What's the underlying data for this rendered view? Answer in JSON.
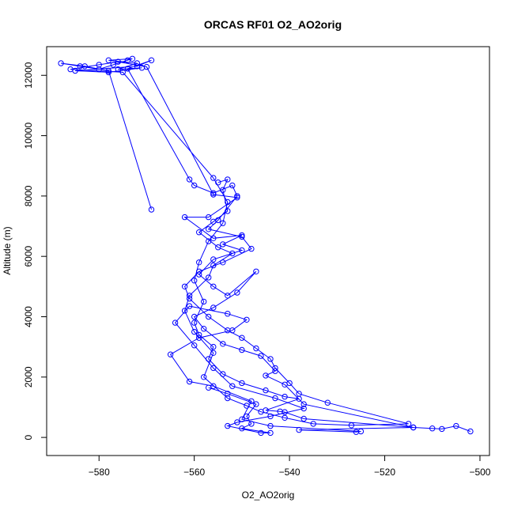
{
  "chart_data": {
    "type": "line",
    "title": "ORCAS RF01 O2_AO2orig",
    "xlabel": "O2_AO2orig",
    "ylabel": "Altitude (m)",
    "xlim": [
      -591,
      -498
    ],
    "ylim": [
      -600,
      12950
    ],
    "xticks": [
      -580,
      -560,
      -540,
      -520,
      -500
    ],
    "yticks": [
      0,
      2000,
      4000,
      6000,
      8000,
      10000,
      12000
    ],
    "markers": "open-circle",
    "color": "#0000ff",
    "grid": false,
    "series": [
      {
        "name": "",
        "points": [
          [
            -502,
            200
          ],
          [
            -505,
            380
          ],
          [
            -508,
            280
          ],
          [
            -510,
            300
          ],
          [
            -514,
            330
          ],
          [
            -537,
            620
          ],
          [
            -541,
            840
          ],
          [
            -542,
            860
          ],
          [
            -545,
            900
          ],
          [
            -538,
            1280
          ],
          [
            -541,
            1350
          ],
          [
            -545,
            1560
          ],
          [
            -550,
            1800
          ],
          [
            -554,
            2100
          ],
          [
            -557,
            2600
          ],
          [
            -556,
            3000
          ],
          [
            -559,
            3400
          ],
          [
            -560,
            3800
          ],
          [
            -558,
            4500
          ],
          [
            -560,
            5200
          ],
          [
            -559,
            5800
          ],
          [
            -557,
            6500
          ],
          [
            -554,
            7100
          ],
          [
            -553,
            7800
          ],
          [
            -556,
            8600
          ],
          [
            -575,
            12100
          ],
          [
            -586,
            12200
          ],
          [
            -580,
            12350
          ],
          [
            -576,
            12450
          ],
          [
            -570,
            12280
          ],
          [
            -556,
            8050
          ],
          [
            -551,
            7950
          ],
          [
            -557,
            7300
          ],
          [
            -562,
            7300
          ],
          [
            -556,
            6600
          ],
          [
            -550,
            6700
          ],
          [
            -554,
            6400
          ],
          [
            -550,
            6200
          ],
          [
            -556,
            5900
          ],
          [
            -559,
            5400
          ],
          [
            -556,
            5000
          ],
          [
            -553,
            4700
          ],
          [
            -547,
            5500
          ],
          [
            -551,
            4800
          ],
          [
            -556,
            4300
          ],
          [
            -560,
            4000
          ],
          [
            -558,
            3600
          ],
          [
            -554,
            3100
          ],
          [
            -550,
            2900
          ],
          [
            -546,
            2700
          ],
          [
            -543,
            2200
          ],
          [
            -545,
            2050
          ],
          [
            -541,
            1750
          ],
          [
            -537,
            1100
          ],
          [
            -514,
            330
          ],
          [
            -538,
            250
          ],
          [
            -526,
            180
          ],
          [
            -525,
            200
          ],
          [
            -544,
            380
          ],
          [
            -550,
            600
          ],
          [
            -548,
            1200
          ],
          [
            -556,
            1700
          ],
          [
            -561,
            1850
          ],
          [
            -565,
            2750
          ],
          [
            -559,
            3300
          ],
          [
            -552,
            3550
          ],
          [
            -549,
            3900
          ],
          [
            -553,
            4100
          ],
          [
            -561,
            4350
          ],
          [
            -564,
            3800
          ],
          [
            -560,
            3050
          ],
          [
            -556,
            2300
          ],
          [
            -552,
            1700
          ],
          [
            -543,
            1300
          ],
          [
            -537,
            960
          ],
          [
            -544,
            700
          ],
          [
            -551,
            500
          ],
          [
            -553,
            380
          ],
          [
            -546,
            150
          ],
          [
            -544,
            150
          ],
          [
            -550,
            300
          ],
          [
            -548,
            450
          ],
          [
            -549,
            700
          ],
          [
            -547,
            1100
          ],
          [
            -553,
            1450
          ],
          [
            -557,
            1650
          ]
        ]
      },
      {
        "name": "",
        "points": [
          [
            -569,
            7550
          ],
          [
            -578,
            12150
          ],
          [
            -583,
            12300
          ],
          [
            -588,
            12400
          ],
          [
            -584,
            12300
          ],
          [
            -580,
            12200
          ],
          [
            -577,
            12350
          ],
          [
            -574,
            12500
          ],
          [
            -573,
            12550
          ],
          [
            -578,
            12500
          ],
          [
            -572,
            12400
          ],
          [
            -576,
            12200
          ],
          [
            -571,
            12250
          ],
          [
            -578,
            12100
          ],
          [
            -585,
            12150
          ],
          [
            -572,
            12300
          ],
          [
            -569,
            12500
          ],
          [
            -574,
            12220
          ],
          [
            -561,
            8550
          ],
          [
            -560,
            8350
          ],
          [
            -556,
            8100
          ],
          [
            -552,
            8350
          ],
          [
            -551,
            8000
          ],
          [
            -555,
            7200
          ],
          [
            -557,
            6900
          ],
          [
            -550,
            6650
          ],
          [
            -548,
            6250
          ],
          [
            -554,
            5800
          ],
          [
            -559,
            5500
          ],
          [
            -562,
            5000
          ],
          [
            -561,
            4600
          ],
          [
            -557,
            4000
          ],
          [
            -553,
            3550
          ],
          [
            -550,
            3300
          ],
          [
            -547,
            2950
          ],
          [
            -544,
            2600
          ],
          [
            -543,
            2300
          ],
          [
            -540,
            1800
          ],
          [
            -538,
            1450
          ],
          [
            -532,
            1150
          ],
          [
            -515,
            450
          ],
          [
            -527,
            400
          ],
          [
            -535,
            450
          ],
          [
            -541,
            650
          ],
          [
            -546,
            850
          ],
          [
            -549,
            1050
          ],
          [
            -553,
            1300
          ],
          [
            -558,
            2000
          ],
          [
            -556,
            2800
          ],
          [
            -560,
            3500
          ],
          [
            -562,
            4200
          ],
          [
            -561,
            4700
          ],
          [
            -557,
            5300
          ],
          [
            -556,
            5700
          ],
          [
            -552,
            6100
          ],
          [
            -555,
            6300
          ],
          [
            -559,
            6800
          ],
          [
            -556,
            7150
          ],
          [
            -553,
            7500
          ],
          [
            -554,
            8200
          ],
          [
            -553,
            8550
          ],
          [
            -555,
            8450
          ]
        ]
      }
    ]
  }
}
